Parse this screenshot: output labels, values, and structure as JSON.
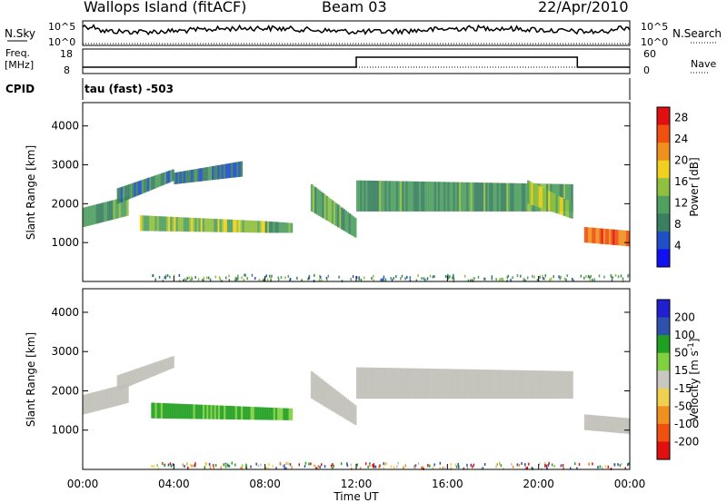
{
  "header": {
    "station": "Wallops Island (fitACF)",
    "beam": "Beam 03",
    "date": "22/Apr/2010"
  },
  "top_panels": {
    "nsky_label": "N.Sky",
    "nsearch_label": "N.Search",
    "nsky_ticks": [
      "10^5",
      "10^0"
    ],
    "nsearch_ticks": [
      "10^5",
      "10^0"
    ],
    "freq_label_1": "Freq.",
    "freq_label_2": "[MHz]",
    "freq_ticks": [
      "18",
      "8"
    ],
    "nave_label": "Nave",
    "nave_ticks": [
      "60",
      "0"
    ],
    "cpid_label": "CPID",
    "cpid_value": "tau (fast) -503"
  },
  "colors": {
    "power_scale": [
      "#1010f0",
      "#2050c8",
      "#3a8060",
      "#50a060",
      "#90c040",
      "#f0d020",
      "#f09020",
      "#f05010",
      "#e01010"
    ],
    "velocity_scale": [
      "#2020d0",
      "#3050b0",
      "#20a020",
      "#80d040",
      "#c8c8c0",
      "#f0d050",
      "#f09020",
      "#f05010",
      "#e01010"
    ],
    "ground_scatter": "#c0c0b8",
    "power_fade": "#8090c0"
  },
  "chart_data": [
    {
      "type": "heatmap",
      "name": "Power",
      "ylabel": "Slant Range [km]",
      "yticks": [
        1000,
        2000,
        3000,
        4000
      ],
      "ylim": [
        0,
        4600
      ],
      "xlim": [
        0,
        24
      ],
      "colorbar_label": "Power [dB]",
      "colorbar_ticks": [
        4,
        8,
        12,
        16,
        20,
        24,
        28
      ],
      "colorbar_range": [
        0,
        30
      ],
      "bands": [
        {
          "x": [
            0.0,
            2.0
          ],
          "y0": [
            1400,
            1700
          ],
          "y1": [
            1900,
            2200
          ],
          "level": 10
        },
        {
          "x": [
            1.5,
            4.0
          ],
          "y0": [
            2000,
            2600
          ],
          "y1": [
            2400,
            2900
          ],
          "level": 8
        },
        {
          "x": [
            2.5,
            8.0
          ],
          "y0": [
            1300,
            1250
          ],
          "y1": [
            1700,
            1550
          ],
          "level": 15
        },
        {
          "x": [
            4.0,
            7.0
          ],
          "y0": [
            2500,
            2700
          ],
          "y1": [
            2800,
            3100
          ],
          "level": 6
        },
        {
          "x": [
            8.0,
            9.2
          ],
          "y0": [
            1250,
            1250
          ],
          "y1": [
            1550,
            1500
          ],
          "level": 10
        },
        {
          "x": [
            10.0,
            12.0
          ],
          "y0": [
            1800,
            1100
          ],
          "y1": [
            2500,
            1600
          ],
          "level": 12
        },
        {
          "x": [
            12.0,
            21.5
          ],
          "y0": [
            1800,
            1800
          ],
          "y1": [
            2600,
            2500
          ],
          "level": 10
        },
        {
          "x": [
            19.5,
            21.5
          ],
          "y0": [
            2000,
            1600
          ],
          "y1": [
            2600,
            2000
          ],
          "level": 14
        },
        {
          "x": [
            22.0,
            24.0
          ],
          "y0": [
            1000,
            900
          ],
          "y1": [
            1400,
            1300
          ],
          "level": 25
        }
      ],
      "ground_strip": {
        "x": [
          3.0,
          24.0
        ],
        "y": [
          0,
          150
        ]
      }
    },
    {
      "type": "heatmap",
      "name": "Velocity",
      "ylabel": "Slant Range [km]",
      "yticks": [
        1000,
        2000,
        3000,
        4000
      ],
      "ylim": [
        0,
        4600
      ],
      "xlim": [
        0,
        24
      ],
      "xlabel": "Time UT",
      "xticks": [
        "00:00",
        "04:00",
        "08:00",
        "12:00",
        "16:00",
        "20:00",
        "00:00"
      ],
      "colorbar_label": "Velocity [m s^-1]",
      "colorbar_ticks": [
        200,
        100,
        50,
        15,
        -15,
        -50,
        -100,
        -200
      ],
      "bands": [
        {
          "x": [
            0.0,
            2.0
          ],
          "y0": [
            1400,
            1700
          ],
          "y1": [
            1900,
            2200
          ],
          "v": 0
        },
        {
          "x": [
            1.5,
            4.0
          ],
          "y0": [
            2000,
            2600
          ],
          "y1": [
            2400,
            2900
          ],
          "v": 0
        },
        {
          "x": [
            3.0,
            9.2
          ],
          "y0": [
            1300,
            1250
          ],
          "y1": [
            1700,
            1550
          ],
          "v": 40
        },
        {
          "x": [
            10.0,
            12.0
          ],
          "y0": [
            1800,
            1100
          ],
          "y1": [
            2500,
            1600
          ],
          "v": 0
        },
        {
          "x": [
            12.0,
            21.5
          ],
          "y0": [
            1800,
            1800
          ],
          "y1": [
            2600,
            2500
          ],
          "v": 0
        },
        {
          "x": [
            22.0,
            24.0
          ],
          "y0": [
            1000,
            900
          ],
          "y1": [
            1400,
            1300
          ],
          "v": 0
        }
      ],
      "ground_strip": {
        "x": [
          3.0,
          24.0
        ],
        "y": [
          0,
          150
        ]
      }
    }
  ]
}
